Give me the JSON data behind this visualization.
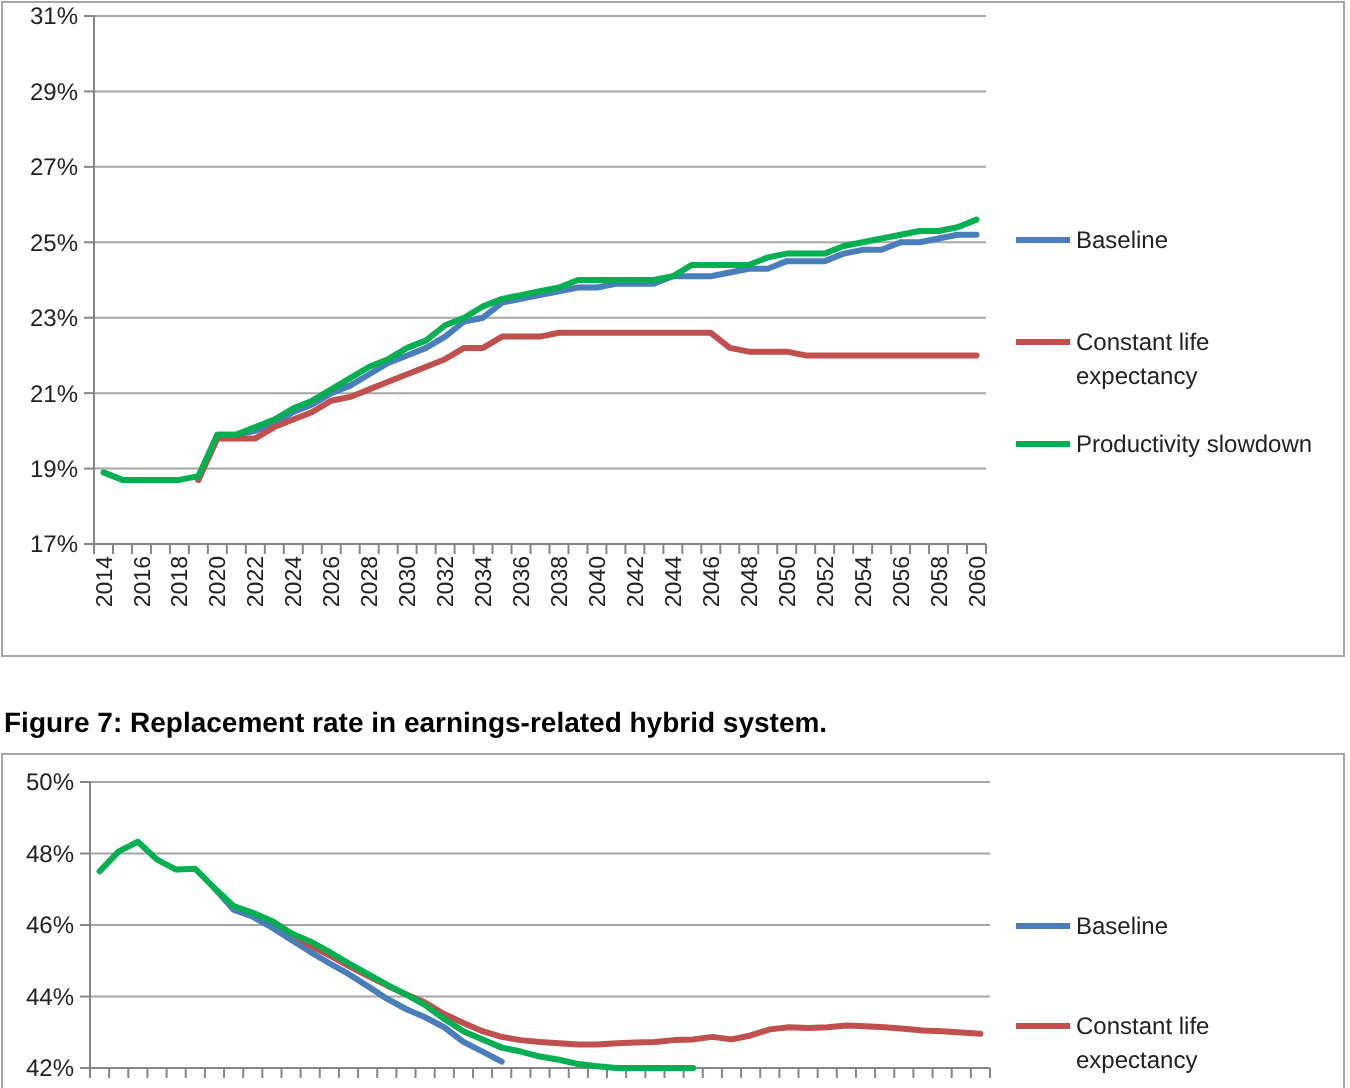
{
  "chart_data": [
    {
      "type": "line",
      "categories": [
        "2014",
        null,
        "2016",
        null,
        "2018",
        null,
        "2020",
        null,
        "2022",
        null,
        "2024",
        null,
        "2026",
        null,
        "2028",
        null,
        "2030",
        null,
        "2032",
        null,
        "2034",
        null,
        "2036",
        null,
        "2038",
        null,
        "2040",
        null,
        "2042",
        null,
        "2044",
        null,
        "2046",
        null,
        "2048",
        null,
        "2050",
        null,
        "2052",
        null,
        "2054",
        null,
        "2056",
        null,
        "2058",
        null,
        "2060"
      ],
      "series": [
        {
          "name": "Baseline",
          "color": "#4a7ebb",
          "values": [
            null,
            null,
            null,
            null,
            null,
            18.7,
            19.9,
            19.9,
            20.0,
            20.2,
            20.5,
            20.7,
            21.0,
            21.2,
            21.5,
            21.8,
            22.0,
            22.2,
            22.5,
            22.9,
            23.0,
            23.4,
            23.5,
            23.6,
            23.7,
            23.8,
            23.8,
            23.9,
            23.9,
            23.9,
            24.1,
            24.1,
            24.1,
            24.2,
            24.3,
            24.3,
            24.5,
            24.5,
            24.5,
            24.7,
            24.8,
            24.8,
            25.0,
            25.0,
            25.1,
            25.2,
            25.2
          ]
        },
        {
          "name": "Constant life expectancy",
          "color": "#c0504d",
          "values": [
            null,
            null,
            null,
            null,
            null,
            18.7,
            19.8,
            19.8,
            19.8,
            20.1,
            20.3,
            20.5,
            20.8,
            20.9,
            21.1,
            21.3,
            21.5,
            21.7,
            21.9,
            22.2,
            22.2,
            22.5,
            22.5,
            22.5,
            22.6,
            22.6,
            22.6,
            22.6,
            22.6,
            22.6,
            22.6,
            22.6,
            22.6,
            22.2,
            22.1,
            22.1,
            22.1,
            22.0,
            22.0,
            22.0,
            22.0,
            22.0,
            22.0,
            22.0,
            22.0,
            22.0,
            22.0
          ]
        },
        {
          "name": "Productivity slowdown",
          "color": "#00b050",
          "values": [
            18.9,
            18.7,
            18.7,
            18.7,
            18.7,
            18.8,
            19.9,
            19.9,
            20.1,
            20.3,
            20.6,
            20.8,
            21.1,
            21.4,
            21.7,
            21.9,
            22.2,
            22.4,
            22.8,
            23.0,
            23.3,
            23.5,
            23.6,
            23.7,
            23.8,
            24.0,
            24.0,
            24.0,
            24.0,
            24.0,
            24.1,
            24.4,
            24.4,
            24.4,
            24.4,
            24.6,
            24.7,
            24.7,
            24.7,
            24.9,
            25.0,
            25.1,
            25.2,
            25.3,
            25.3,
            25.4,
            25.6
          ]
        }
      ],
      "ylim": [
        17,
        31
      ],
      "yticks": [
        {
          "value": 17,
          "label": "17%"
        },
        {
          "value": 19,
          "label": "19%"
        },
        {
          "value": 21,
          "label": "21%"
        },
        {
          "value": 23,
          "label": "23%"
        },
        {
          "value": 25,
          "label": "25%"
        },
        {
          "value": 27,
          "label": "27%"
        },
        {
          "value": 29,
          "label": "29%"
        },
        {
          "value": 31,
          "label": "31%"
        }
      ],
      "grid": "y",
      "legend": "right"
    },
    {
      "type": "line",
      "title": "Figure 7: Replacement rate in earnings-related hybrid system.",
      "categories": [
        null,
        null,
        null,
        null,
        null,
        null,
        null,
        null,
        null,
        null,
        null,
        null,
        null,
        null,
        null,
        null,
        null,
        null,
        null,
        null,
        null,
        null,
        null,
        null,
        null,
        null,
        null,
        null,
        null,
        null,
        null,
        null,
        null,
        null,
        null,
        null,
        null,
        null,
        null,
        null,
        null,
        null,
        null,
        null,
        null,
        null,
        null
      ],
      "series": [
        {
          "name": "Baseline",
          "color": "#4a7ebb",
          "values": [
            null,
            null,
            null,
            null,
            null,
            null,
            47.03,
            46.43,
            46.23,
            45.93,
            45.59,
            45.25,
            44.93,
            44.63,
            44.29,
            43.94,
            43.65,
            43.42,
            43.14,
            42.73,
            42.46,
            42.18,
            null,
            null,
            null,
            null,
            null,
            null,
            null,
            null,
            null,
            null,
            null,
            null,
            null,
            null,
            null,
            null,
            null,
            null,
            null,
            null,
            null,
            null,
            null,
            null,
            null
          ]
        },
        {
          "name": "Constant life expectancy",
          "color": "#c0504d",
          "values": [
            null,
            null,
            null,
            null,
            null,
            null,
            null,
            null,
            null,
            46.11,
            45.77,
            45.43,
            45.15,
            44.86,
            44.58,
            44.31,
            44.06,
            43.83,
            43.51,
            43.26,
            43.03,
            42.87,
            42.78,
            42.73,
            42.69,
            42.66,
            42.66,
            42.69,
            42.71,
            42.73,
            42.78,
            42.8,
            42.87,
            42.8,
            42.91,
            43.08,
            43.14,
            43.12,
            43.14,
            43.19,
            43.17,
            43.14,
            43.1,
            43.05,
            43.03,
            42.99,
            42.96
          ]
        },
        {
          "color": "#00b050",
          "values": [
            47.5,
            48.06,
            48.33,
            47.83,
            47.55,
            47.57,
            47.03,
            46.53,
            46.34,
            46.11,
            45.77,
            45.54,
            45.25,
            44.93,
            44.63,
            44.33,
            44.06,
            43.76,
            43.37,
            43.03,
            42.8,
            42.57,
            42.46,
            42.32,
            42.23,
            42.11,
            42.05,
            42.0,
            42.0,
            42.0,
            42.0,
            42.0,
            null,
            null,
            null,
            null,
            null,
            null,
            null,
            null,
            null,
            null,
            null,
            null,
            null,
            null,
            null
          ]
        }
      ],
      "ylim": [
        42,
        50
      ],
      "yticks": [
        {
          "value": 42,
          "label": "42%"
        },
        {
          "value": 44,
          "label": "44%"
        },
        {
          "value": 46,
          "label": "46%"
        },
        {
          "value": 48,
          "label": "48%"
        },
        {
          "value": 50,
          "label": "50%"
        }
      ],
      "tick_labels": "y",
      "grid": "y",
      "legend": "right"
    }
  ]
}
